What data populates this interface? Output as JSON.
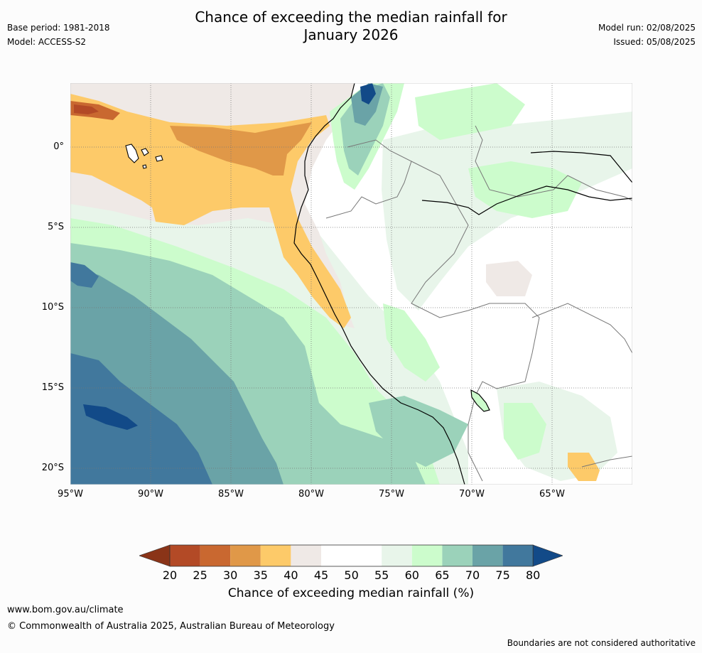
{
  "title_line1": "Chance of exceeding the median rainfall for",
  "title_line2": "January 2026",
  "meta_left": {
    "base_period": "Base period: 1981-2018",
    "model": "Model: ACCESS-S2"
  },
  "meta_right": {
    "model_run": "Model run: 02/08/2025",
    "issued": "Issued: 05/08/2025"
  },
  "lat_labels": [
    "0°",
    "5°S",
    "10°S",
    "15°S",
    "20°S"
  ],
  "lon_labels": [
    "95°W",
    "90°W",
    "85°W",
    "80°W",
    "75°W",
    "70°W",
    "65°W"
  ],
  "colorbar": {
    "ticks": [
      "20",
      "25",
      "30",
      "35",
      "40",
      "45",
      "50",
      "55",
      "60",
      "65",
      "70",
      "75",
      "80"
    ],
    "colors": [
      "#8a3418",
      "#b34a26",
      "#c96830",
      "#e09848",
      "#fdca69",
      "#efe9e6",
      "#ffffff",
      "#ffffff",
      "#e8f5ea",
      "#ccfccc",
      "#9bd2ba",
      "#6aa3a7",
      "#41789d",
      "#124a88"
    ],
    "label": "Chance of exceeding median rainfall (%)"
  },
  "footer": {
    "site": "www.bom.gov.au/climate",
    "copyright": "© Commonwealth of Australia 2025, Australian Bureau of Meteorology",
    "disclaimer": "Boundaries are not considered authoritative"
  }
}
